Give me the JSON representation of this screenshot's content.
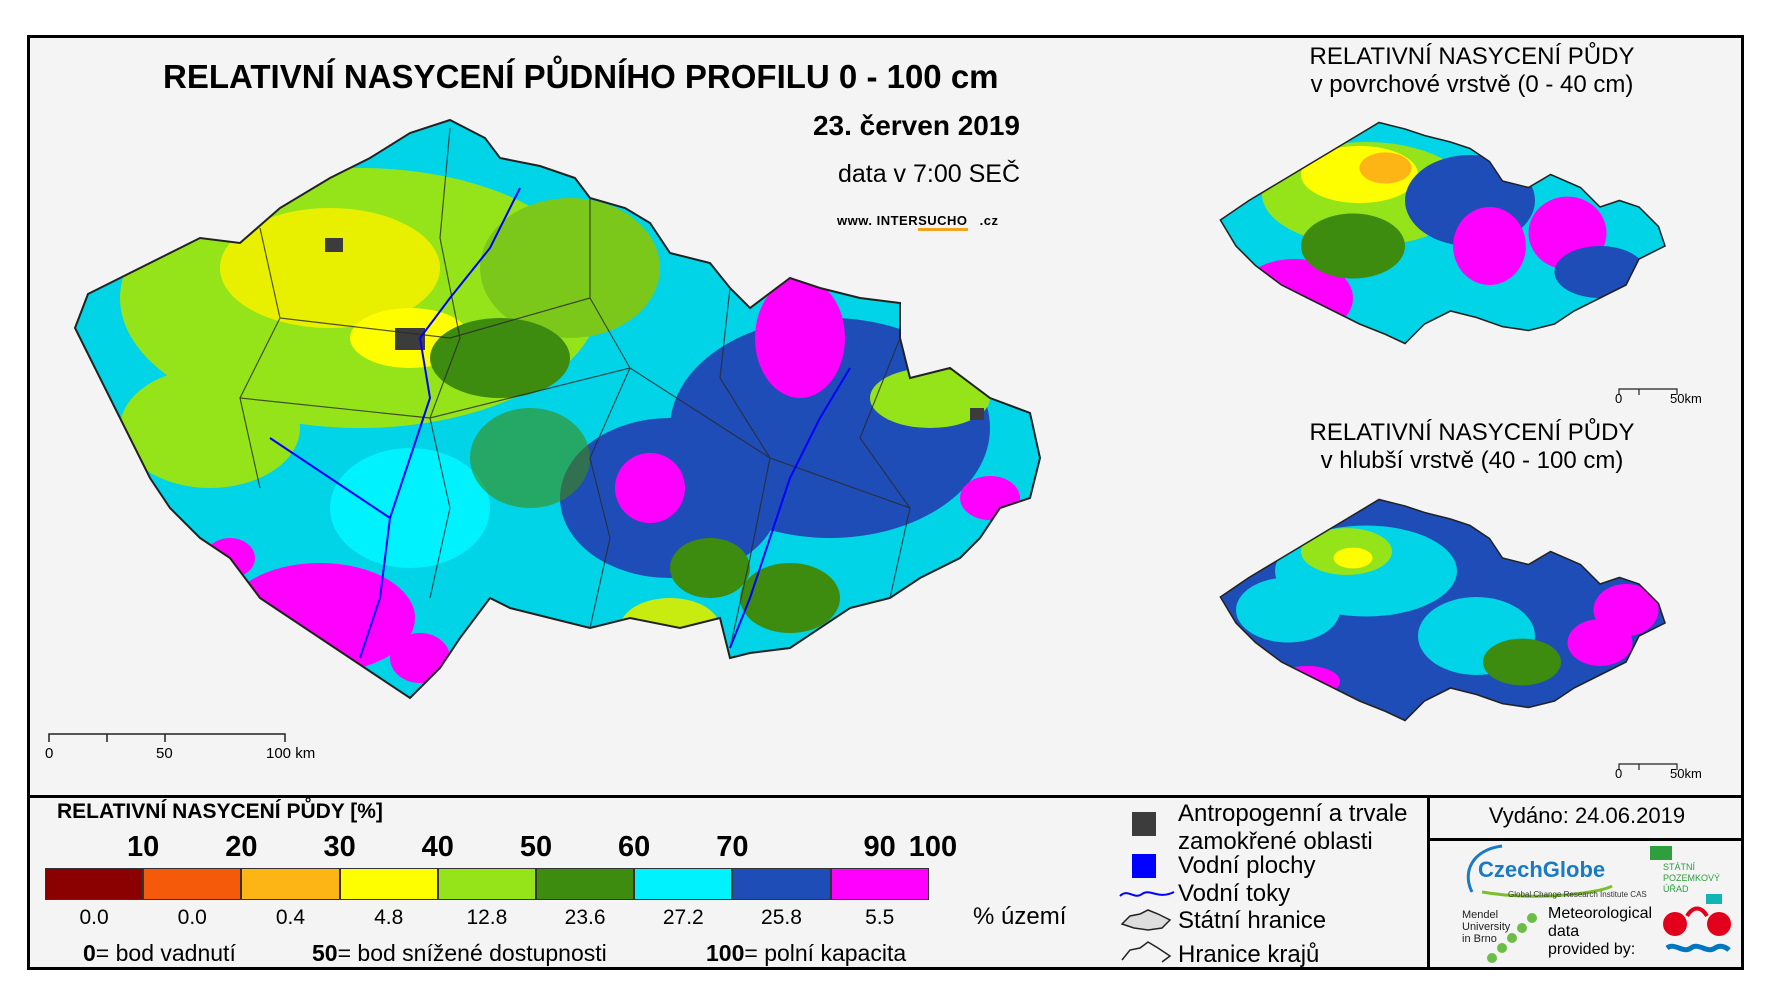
{
  "main": {
    "title": "RELATIVNÍ NASYCENÍ PŮDNÍHO PROFILU 0 - 100 cm",
    "date": "23. červen 2019",
    "time": "data v 7:00 SEČ",
    "website_prefix": "www.",
    "website_brand_a": "INTER",
    "website_brand_b": "SUCHO",
    "website_suffix": ".cz",
    "scale": [
      "0",
      "50",
      "100 km"
    ]
  },
  "inset_top": {
    "title_line1": "RELATIVNÍ NASYCENÍ PŮDY",
    "title_line2": "v povrchové vrstvě (0 - 40 cm)",
    "scale": [
      "0",
      "50km"
    ]
  },
  "inset_bottom": {
    "title_line1": "RELATIVNÍ NASYCENÍ PŮDY",
    "title_line2": "v hlubší vrstvě (40 - 100 cm)",
    "scale": [
      "0",
      "50km"
    ]
  },
  "legend": {
    "title": "RELATIVNÍ NASYCENÍ PŮDY [%]",
    "ticks": [
      "10",
      "20",
      "30",
      "40",
      "50",
      "60",
      "70",
      "90",
      "100"
    ],
    "classes": [
      {
        "color": "#8b0000",
        "percent": "0.0"
      },
      {
        "color": "#f45a0a",
        "percent": "0.0"
      },
      {
        "color": "#fdb515",
        "percent": "0.4"
      },
      {
        "color": "#fefe00",
        "percent": "4.8"
      },
      {
        "color": "#95e41a",
        "percent": "12.8"
      },
      {
        "color": "#3d8b0f",
        "percent": "23.6"
      },
      {
        "color": "#00f2ff",
        "percent": "27.2"
      },
      {
        "color": "#1f4db7",
        "percent": "25.8"
      },
      {
        "color": "#ff00ff",
        "percent": "5.5"
      }
    ],
    "unit_label": "% území",
    "notes": [
      {
        "num": "0",
        "text": "= bod vadnutí"
      },
      {
        "num": "50",
        "text": "= bod snížené dostupnosti"
      },
      {
        "num": "100",
        "text": "= polní kapacita"
      }
    ]
  },
  "key": {
    "wet_areas_line1": "Antropogenní a trvale",
    "wet_areas_line2": "zamokřené oblasti",
    "water_bodies": "Vodní plochy",
    "rivers": "Vodní toky",
    "state_border": "Státní hranice",
    "region_border": "Hranice krajů",
    "colors": {
      "wet": "#3c3c3c",
      "water": "#0000ff",
      "river": "#0000ff"
    }
  },
  "footer": {
    "issued": "Vydáno: 24.06.2019",
    "czechglobe": "CzechGlobe",
    "czechglobe_sub": "Global Change Research Institute CAS",
    "mendel": [
      "Mendel",
      "University",
      "in Brno"
    ],
    "spu": [
      "STÁTNÍ",
      "POZEMKOVÝ",
      "ÚŘAD"
    ],
    "meteo": [
      "Meteorological",
      "data",
      "provided by:"
    ]
  }
}
